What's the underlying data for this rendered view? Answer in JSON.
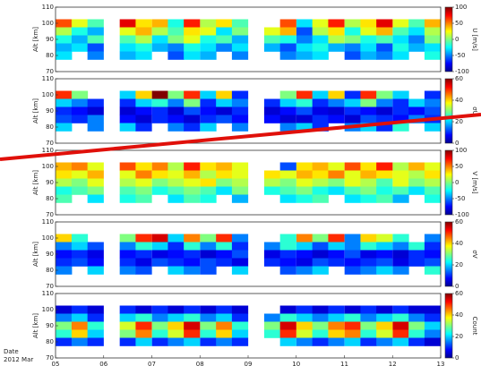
{
  "chart_data": [
    {
      "type": "heatmap",
      "ylabel": "Alt [km]",
      "clabel": "U [m/s]",
      "xlim": [
        5,
        13
      ],
      "ylim": [
        70,
        110
      ],
      "yticks": [
        70,
        80,
        90,
        100,
        110
      ],
      "clim": [
        -100,
        100
      ],
      "cticks": [
        100,
        50,
        0,
        -50,
        -100
      ],
      "x": [
        5.17,
        5.5,
        5.83,
        6.17,
        6.5,
        6.83,
        7.17,
        7.5,
        7.83,
        8.17,
        8.5,
        8.83,
        9.17,
        9.5,
        9.83,
        10.17,
        10.5,
        10.83,
        11.17,
        11.5,
        11.83,
        12.17,
        12.5,
        12.83
      ],
      "y": [
        100,
        95,
        90,
        85,
        80
      ],
      "z": [
        [
          60,
          20,
          -10,
          null,
          80,
          30,
          40,
          -20,
          70,
          10,
          30,
          -10,
          null,
          null,
          60,
          -30,
          20,
          70,
          10,
          30,
          80,
          20,
          -10,
          40
        ],
        [
          10,
          -20,
          -40,
          null,
          20,
          40,
          10,
          -10,
          30,
          20,
          -30,
          0,
          null,
          20,
          40,
          -60,
          10,
          30,
          -20,
          20,
          40,
          -10,
          -30,
          10
        ],
        [
          -20,
          -40,
          -10,
          null,
          -10,
          10,
          -30,
          0,
          20,
          -20,
          -10,
          -40,
          null,
          -10,
          -20,
          -50,
          -30,
          10,
          0,
          -20,
          -10,
          -30,
          -50,
          0
        ],
        [
          -40,
          -30,
          -60,
          null,
          -30,
          -20,
          -40,
          -50,
          -20,
          -30,
          -50,
          -30,
          null,
          -40,
          -60,
          -30,
          -20,
          -40,
          -50,
          -30,
          -60,
          -20,
          -40,
          -30
        ],
        [
          -30,
          null,
          -50,
          null,
          -40,
          -30,
          null,
          -60,
          -30,
          -40,
          null,
          -50,
          null,
          null,
          -50,
          -40,
          -30,
          null,
          -60,
          -40,
          -50,
          -30,
          null,
          -20
        ]
      ]
    },
    {
      "type": "heatmap",
      "ylabel": "Alt [km]",
      "clabel": "σU",
      "xlim": [
        5,
        13
      ],
      "ylim": [
        70,
        110
      ],
      "yticks": [
        70,
        80,
        90,
        100,
        110
      ],
      "clim": [
        0,
        60
      ],
      "cticks": [
        60,
        40,
        20,
        0
      ],
      "x": [
        5.17,
        5.5,
        5.83,
        6.17,
        6.5,
        6.83,
        7.17,
        7.5,
        7.83,
        8.17,
        8.5,
        8.83,
        9.17,
        9.5,
        9.83,
        10.17,
        10.5,
        10.83,
        11.17,
        11.5,
        11.83,
        12.17,
        12.5,
        12.83
      ],
      "y": [
        100,
        95,
        90,
        85,
        80
      ],
      "z": [
        [
          50,
          30,
          null,
          null,
          20,
          40,
          60,
          30,
          50,
          20,
          40,
          10,
          null,
          null,
          30,
          50,
          20,
          40,
          10,
          50,
          30,
          20,
          null,
          10
        ],
        [
          20,
          15,
          10,
          null,
          10,
          20,
          25,
          15,
          30,
          10,
          20,
          15,
          null,
          10,
          20,
          25,
          10,
          15,
          20,
          30,
          15,
          10,
          20,
          15
        ],
        [
          10,
          8,
          5,
          null,
          5,
          8,
          10,
          5,
          12,
          8,
          5,
          10,
          null,
          5,
          8,
          12,
          6,
          5,
          10,
          8,
          5,
          10,
          8,
          12
        ],
        [
          12,
          10,
          15,
          null,
          8,
          5,
          10,
          8,
          5,
          10,
          12,
          8,
          null,
          8,
          5,
          5,
          10,
          8,
          5,
          12,
          10,
          8,
          15,
          10
        ],
        [
          20,
          null,
          15,
          null,
          20,
          10,
          null,
          15,
          10,
          20,
          null,
          15,
          null,
          null,
          15,
          20,
          10,
          null,
          15,
          20,
          10,
          25,
          null,
          20
        ]
      ]
    },
    {
      "type": "heatmap",
      "ylabel": "Alt [km]",
      "clabel": "V [m/s]",
      "xlim": [
        5,
        13
      ],
      "ylim": [
        70,
        110
      ],
      "yticks": [
        70,
        80,
        90,
        100,
        110
      ],
      "clim": [
        -100,
        100
      ],
      "cticks": [
        100,
        50,
        0,
        -50,
        -100
      ],
      "x": [
        5.17,
        5.5,
        5.83,
        6.17,
        6.5,
        6.83,
        7.17,
        7.5,
        7.83,
        8.17,
        8.5,
        8.83,
        9.17,
        9.5,
        9.83,
        10.17,
        10.5,
        10.83,
        11.17,
        11.5,
        11.83,
        12.17,
        12.5,
        12.83
      ],
      "y": [
        100,
        95,
        90,
        85,
        80
      ],
      "z": [
        [
          40,
          50,
          20,
          null,
          60,
          30,
          50,
          10,
          70,
          30,
          40,
          20,
          null,
          null,
          -60,
          30,
          40,
          20,
          60,
          30,
          70,
          10,
          40,
          20
        ],
        [
          30,
          20,
          40,
          null,
          20,
          50,
          30,
          20,
          40,
          10,
          30,
          20,
          null,
          30,
          20,
          40,
          30,
          50,
          20,
          40,
          30,
          20,
          10,
          30
        ],
        [
          10,
          0,
          20,
          null,
          10,
          20,
          0,
          10,
          20,
          30,
          0,
          10,
          null,
          10,
          0,
          20,
          10,
          0,
          20,
          10,
          -10,
          20,
          0,
          10
        ],
        [
          -20,
          -10,
          0,
          null,
          -10,
          0,
          -20,
          -10,
          0,
          -10,
          -30,
          0,
          null,
          -20,
          -10,
          0,
          -20,
          -30,
          -10,
          0,
          -20,
          -10,
          -30,
          -10
        ],
        [
          -10,
          null,
          -30,
          null,
          -20,
          -10,
          null,
          -30,
          -10,
          -20,
          null,
          -40,
          null,
          null,
          -30,
          -20,
          -10,
          null,
          -30,
          -20,
          -10,
          -40,
          null,
          -20
        ]
      ]
    },
    {
      "type": "heatmap",
      "ylabel": "Alt [km]",
      "clabel": "σV",
      "xlim": [
        5,
        13
      ],
      "ylim": [
        70,
        110
      ],
      "yticks": [
        70,
        80,
        90,
        100,
        110
      ],
      "clim": [
        0,
        60
      ],
      "cticks": [
        60,
        40,
        20,
        0
      ],
      "x": [
        5.17,
        5.5,
        5.83,
        6.17,
        6.5,
        6.83,
        7.17,
        7.5,
        7.83,
        8.17,
        8.5,
        8.83,
        9.17,
        9.5,
        9.83,
        10.17,
        10.5,
        10.83,
        11.17,
        11.5,
        11.83,
        12.17,
        12.5,
        12.83
      ],
      "y": [
        100,
        95,
        90,
        85,
        80
      ],
      "z": [
        [
          40,
          25,
          null,
          null,
          30,
          50,
          55,
          20,
          45,
          30,
          50,
          15,
          null,
          null,
          25,
          45,
          30,
          50,
          15,
          40,
          35,
          25,
          null,
          15
        ],
        [
          15,
          20,
          12,
          null,
          15,
          25,
          20,
          10,
          25,
          15,
          25,
          10,
          null,
          15,
          25,
          20,
          12,
          20,
          15,
          25,
          20,
          15,
          25,
          10
        ],
        [
          8,
          10,
          6,
          null,
          8,
          10,
          6,
          8,
          10,
          5,
          8,
          12,
          null,
          6,
          10,
          8,
          5,
          8,
          12,
          6,
          8,
          5,
          10,
          8
        ],
        [
          10,
          12,
          8,
          null,
          10,
          6,
          12,
          10,
          8,
          12,
          10,
          6,
          null,
          10,
          8,
          6,
          12,
          10,
          8,
          10,
          12,
          6,
          10,
          12
        ],
        [
          15,
          null,
          20,
          null,
          15,
          12,
          null,
          20,
          15,
          12,
          null,
          20,
          null,
          null,
          12,
          15,
          20,
          null,
          12,
          15,
          20,
          15,
          null,
          25
        ]
      ]
    },
    {
      "type": "heatmap",
      "ylabel": "Alt [km]",
      "clabel": "Count",
      "xlim": [
        5,
        13
      ],
      "ylim": [
        70,
        110
      ],
      "yticks": [
        70,
        80,
        90,
        100,
        110
      ],
      "clim": [
        0,
        60
      ],
      "cticks": [
        60,
        40,
        20,
        0
      ],
      "xticks": [
        {
          "value": 5,
          "label": "05"
        },
        {
          "value": 6,
          "label": "06"
        },
        {
          "value": 7,
          "label": "07"
        },
        {
          "value": 8,
          "label": "08"
        },
        {
          "value": 9,
          "label": "09"
        },
        10,
        11,
        12,
        13
      ],
      "x": [
        5.17,
        5.5,
        5.83,
        6.17,
        6.5,
        6.83,
        7.17,
        7.5,
        7.83,
        8.17,
        8.5,
        8.83,
        9.17,
        9.5,
        9.83,
        10.17,
        10.5,
        10.83,
        11.17,
        11.5,
        11.83,
        12.17,
        12.5,
        12.83
      ],
      "y": [
        100,
        95,
        90,
        85,
        80
      ],
      "z": [
        [
          5,
          10,
          5,
          null,
          10,
          5,
          10,
          5,
          10,
          5,
          10,
          5,
          null,
          null,
          5,
          10,
          5,
          10,
          5,
          10,
          5,
          10,
          5,
          5
        ],
        [
          15,
          20,
          10,
          null,
          20,
          25,
          15,
          20,
          25,
          15,
          20,
          10,
          null,
          15,
          25,
          20,
          15,
          20,
          25,
          15,
          20,
          25,
          15,
          10
        ],
        [
          30,
          45,
          25,
          null,
          35,
          50,
          30,
          40,
          55,
          30,
          45,
          25,
          null,
          30,
          55,
          40,
          30,
          45,
          50,
          30,
          40,
          55,
          30,
          20
        ],
        [
          25,
          40,
          20,
          null,
          30,
          45,
          25,
          35,
          50,
          25,
          40,
          20,
          null,
          25,
          50,
          35,
          25,
          40,
          45,
          25,
          35,
          50,
          25,
          15
        ],
        [
          10,
          15,
          10,
          null,
          10,
          20,
          10,
          15,
          20,
          10,
          15,
          10,
          null,
          null,
          20,
          15,
          10,
          15,
          20,
          10,
          15,
          20,
          10,
          5
        ]
      ]
    }
  ],
  "footer": {
    "label": "Date",
    "period": "2012 Mar"
  }
}
